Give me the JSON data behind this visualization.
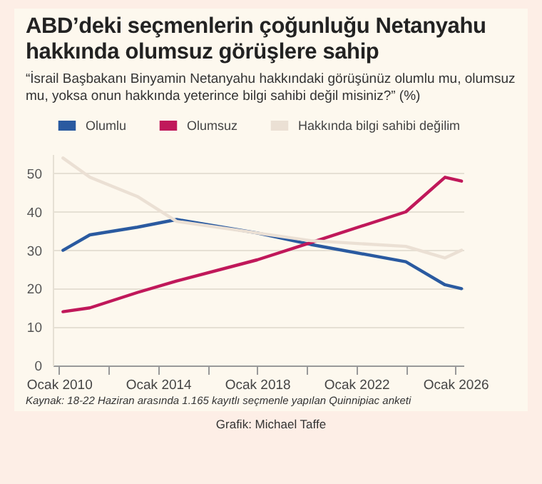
{
  "chart_data": {
    "type": "line",
    "title": "ABD’deki seçmenlerin çoğunluğu Netanyahu hakkında olumsuz görüşlere sahip",
    "subtitle": "“İsrail Başbakanı Binyamin Netanyahu hakkındaki görüşünüz olumlu mu, olumsuz mu, yoksa onun hakkında yeterince bilgi sahibi değil misiniz?” (%)",
    "x": [
      "2010-03",
      "2011-04",
      "2013-03",
      "2014-10",
      "2018-01",
      "2020-03",
      "2024-01",
      "2025-08",
      "2026-04"
    ],
    "series": [
      {
        "name": "Olumlu",
        "color": "#2a5aa0",
        "values": [
          30,
          34,
          36,
          38,
          34.5,
          31.5,
          27,
          21,
          20
        ]
      },
      {
        "name": "Olumsuz",
        "color": "#c0185a",
        "values": [
          14,
          15,
          19,
          22,
          27.5,
          32,
          40,
          49,
          48
        ]
      },
      {
        "name": "Hakkında bilgi sahibi değilim",
        "color": "#ebe0d4",
        "values": [
          54,
          49,
          44,
          37.5,
          34.5,
          32.5,
          31,
          28,
          30
        ]
      }
    ],
    "xlim": [
      "2009-10",
      "2026-05"
    ],
    "ylim": [
      0,
      55
    ],
    "yticks": [
      0,
      10,
      20,
      30,
      40,
      50
    ],
    "xticks": [
      {
        "value": "2010-01",
        "label": "Ocak 2010"
      },
      {
        "value": "2012-01",
        "label": null
      },
      {
        "value": "2014-01",
        "label": "Ocak 2014"
      },
      {
        "value": "2016-01",
        "label": null
      },
      {
        "value": "2018-01",
        "label": "Ocak 2018"
      },
      {
        "value": "2020-01",
        "label": null
      },
      {
        "value": "2022-01",
        "label": "Ocak 2022"
      },
      {
        "value": "2024-01",
        "label": null
      },
      {
        "value": "2026-01",
        "label": "Ocak 2026"
      }
    ],
    "grid": "y",
    "legend": "top left",
    "line_style": "solid",
    "annotations": [
      "Kaynak: 18-22 Haziran arasında 1.165 kayıtlı seçmenle yapılan Quinnipiac anketi",
      "Grafik: Michael Taffe"
    ]
  }
}
